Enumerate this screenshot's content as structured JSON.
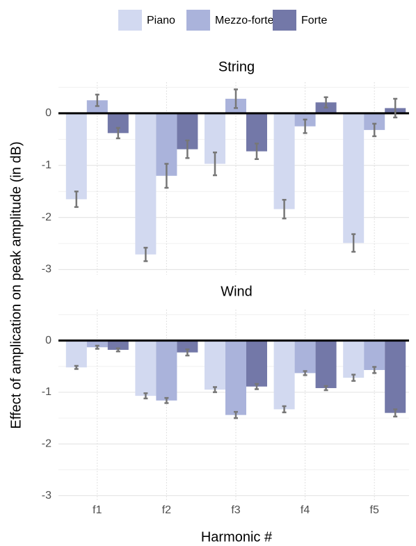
{
  "chart_data": {
    "type": "bar",
    "ylabel": "Effect of amplication on peak amplitude (in dB)",
    "xlabel": "Harmonic #",
    "categories": [
      "f1",
      "f2",
      "f3",
      "f4",
      "f5"
    ],
    "legend": "top",
    "grid": true,
    "ylim": [
      -3.1,
      0.6
    ],
    "yticks": [
      -3,
      -2,
      -1,
      0
    ],
    "series": [
      {
        "name": "Piano",
        "color": "#d2d9f0"
      },
      {
        "name": "Mezzo-forte",
        "color": "#aab3db"
      },
      {
        "name": "Forte",
        "color": "#7378a8"
      }
    ],
    "facets": [
      {
        "title": "String",
        "series": [
          {
            "values": [
              -1.65,
              -2.71,
              -0.97,
              -1.84,
              -2.49
            ],
            "errors": [
              0.15,
              0.13,
              0.22,
              0.18,
              0.17
            ]
          },
          {
            "values": [
              0.25,
              -1.2,
              0.28,
              -0.25,
              -0.32
            ],
            "errors": [
              0.11,
              0.23,
              0.18,
              0.13,
              0.12
            ]
          },
          {
            "values": [
              -0.38,
              -0.69,
              -0.73,
              0.21,
              0.1
            ],
            "errors": [
              0.1,
              0.17,
              0.15,
              0.1,
              0.18
            ]
          }
        ]
      },
      {
        "title": "Wind",
        "series": [
          {
            "values": [
              -0.52,
              -1.07,
              -0.95,
              -1.33,
              -0.72
            ],
            "errors": [
              0.03,
              0.05,
              0.05,
              0.06,
              0.06
            ]
          },
          {
            "values": [
              -0.13,
              -1.16,
              -1.44,
              -0.63,
              -0.57
            ],
            "errors": [
              0.03,
              0.05,
              0.06,
              0.04,
              0.06
            ]
          },
          {
            "values": [
              -0.18,
              -0.23,
              -0.89,
              -0.92,
              -1.4
            ],
            "errors": [
              0.03,
              0.06,
              0.05,
              0.04,
              0.07
            ]
          }
        ]
      }
    ]
  }
}
